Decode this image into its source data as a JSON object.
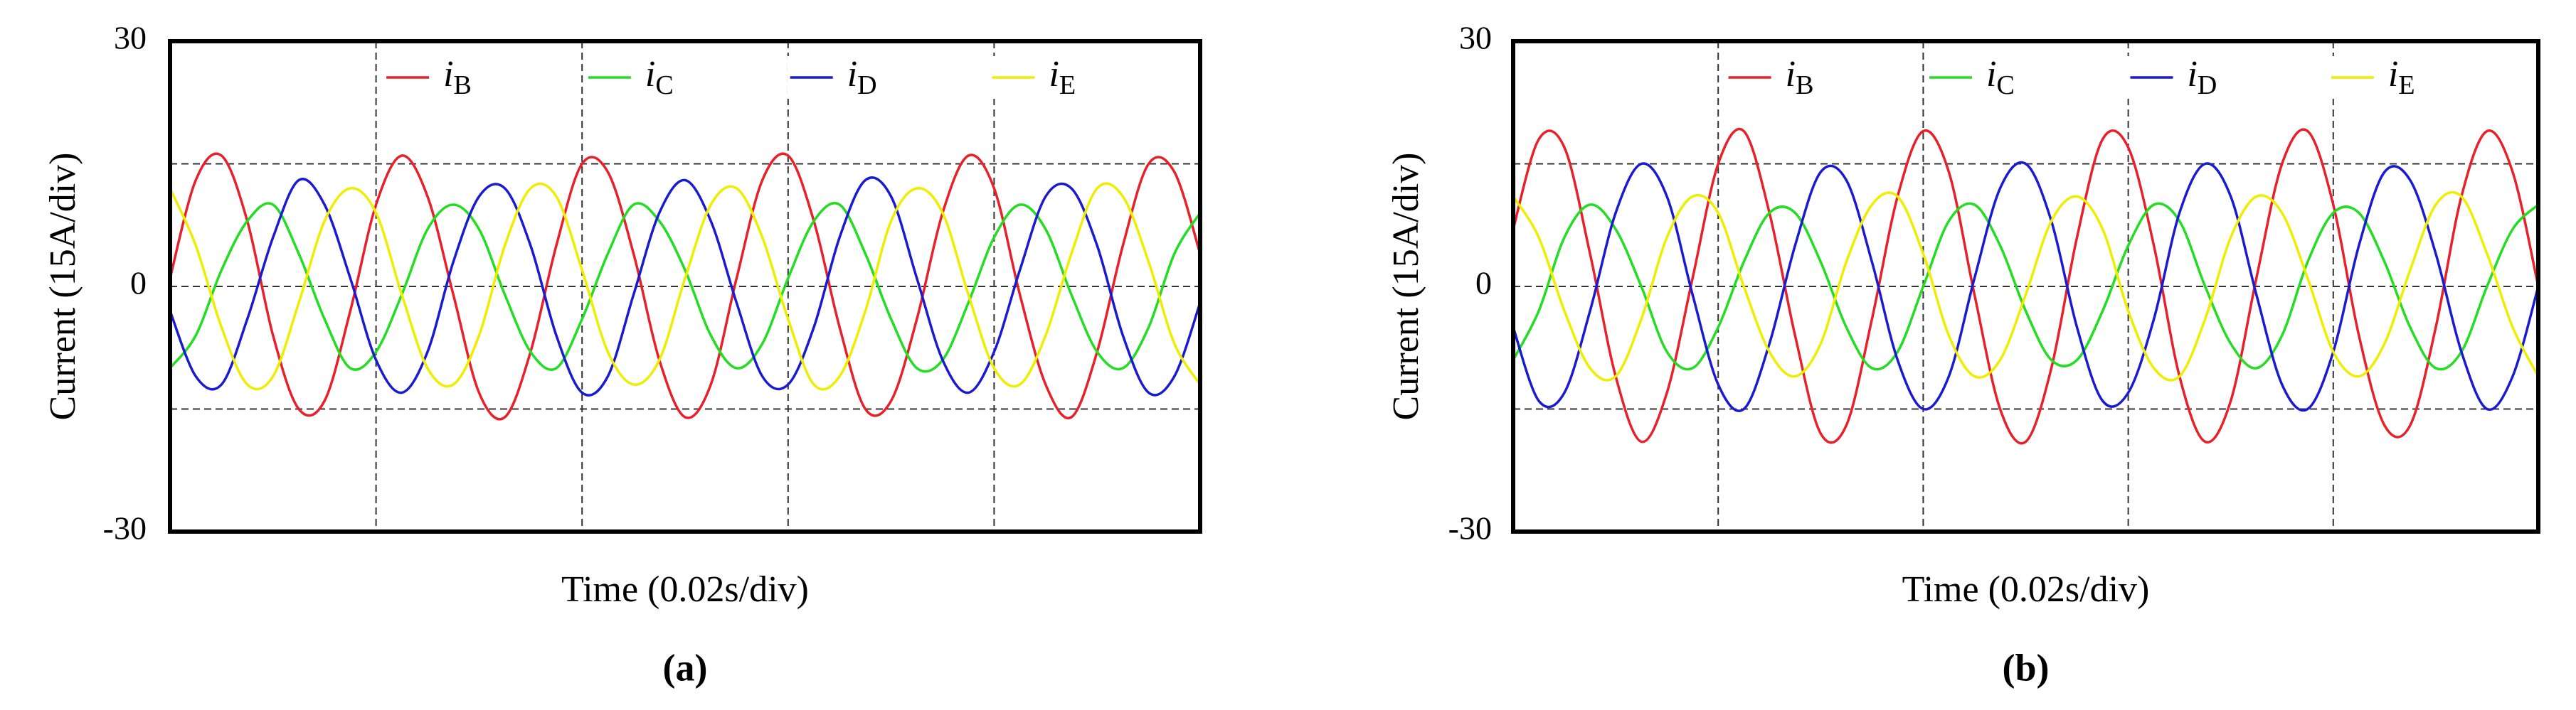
{
  "chart_data": [
    {
      "type": "line",
      "y_label": "Current (15A/div)",
      "x_label": "Time (0.02s/div)",
      "caption": "(a)",
      "xlim": [
        0,
        0.1
      ],
      "ylim": [
        -30,
        30
      ],
      "yticks": [
        -30,
        0,
        30
      ],
      "xgrid": [
        0.02,
        0.04,
        0.06,
        0.08
      ],
      "ygrid": [
        -15,
        0,
        15
      ],
      "legend": "top",
      "x": [
        0,
        0.0025,
        0.005,
        0.0075,
        0.01,
        0.0125,
        0.015,
        0.0175,
        0.02,
        0.0225,
        0.025,
        0.0275,
        0.03,
        0.0325,
        0.035,
        0.0375,
        0.04,
        0.0425,
        0.045,
        0.0475,
        0.05,
        0.0525,
        0.055,
        0.0575,
        0.06,
        0.0625,
        0.065,
        0.0675,
        0.07,
        0.0725,
        0.075,
        0.0775,
        0.08,
        0.0825,
        0.085,
        0.0875,
        0.09,
        0.0925,
        0.095,
        0.0975,
        0.1
      ],
      "series": [
        {
          "name": "iB",
          "color": "#e8202a",
          "values": [
            1,
            13,
            16,
            8,
            -6,
            -15,
            -14,
            -3,
            10,
            16,
            11,
            -1,
            -13,
            -16,
            -8,
            5,
            15,
            14,
            4,
            -9,
            -16,
            -12,
            1,
            13,
            16,
            8,
            -5,
            -15,
            -14,
            -4,
            9,
            16,
            12,
            -1,
            -12,
            -16,
            -8,
            5,
            15,
            14,
            4
          ]
        },
        {
          "name": "iC",
          "color": "#22dd22",
          "values": [
            -10,
            -6,
            2,
            8,
            10,
            4,
            -4,
            -10,
            -8,
            -1,
            7,
            10,
            7,
            -1,
            -8,
            -10,
            -4,
            4,
            10,
            8,
            2,
            -6,
            -10,
            -7,
            1,
            8,
            10,
            4,
            -4,
            -10,
            -9,
            -2,
            6,
            10,
            7,
            -1,
            -8,
            -10,
            -5,
            4,
            9
          ]
        },
        {
          "name": "iD",
          "color": "#1a1ad0",
          "values": [
            -3,
            -11,
            -12,
            -4,
            6,
            13,
            10,
            1,
            -9,
            -13,
            -8,
            3,
            11,
            12,
            5,
            -6,
            -13,
            -11,
            -1,
            9,
            13,
            8,
            -2,
            -11,
            -12,
            -5,
            6,
            13,
            11,
            1,
            -9,
            -13,
            -8,
            2,
            11,
            12,
            5,
            -6,
            -13,
            -11,
            -2
          ]
        },
        {
          "name": "iE",
          "color": "#eeee00",
          "values": [
            12,
            5,
            -5,
            -12,
            -11,
            -2,
            8,
            12,
            9,
            -1,
            -10,
            -12,
            -6,
            5,
            12,
            11,
            2,
            -8,
            -12,
            -9,
            1,
            10,
            12,
            6,
            -4,
            -12,
            -11,
            -3,
            8,
            12,
            9,
            -1,
            -10,
            -12,
            -6,
            4,
            12,
            11,
            3,
            -7,
            -12
          ]
        }
      ]
    },
    {
      "type": "line",
      "y_label": "Current (15A/div)",
      "x_label": "Time (0.02s/div)",
      "caption": "(b)",
      "xlim": [
        0,
        0.1
      ],
      "ylim": [
        -30,
        30
      ],
      "yticks": [
        -30,
        0,
        30
      ],
      "xgrid": [
        0.02,
        0.04,
        0.06,
        0.08
      ],
      "ygrid": [
        -15,
        0,
        15
      ],
      "legend": "top",
      "x": [
        0,
        0.0025,
        0.005,
        0.0075,
        0.01,
        0.0125,
        0.015,
        0.0175,
        0.02,
        0.0225,
        0.025,
        0.0275,
        0.03,
        0.0325,
        0.035,
        0.0375,
        0.04,
        0.0425,
        0.045,
        0.0475,
        0.05,
        0.0525,
        0.055,
        0.0575,
        0.06,
        0.0625,
        0.065,
        0.0675,
        0.07,
        0.0725,
        0.075,
        0.0775,
        0.08,
        0.0825,
        0.085,
        0.0875,
        0.09,
        0.0925,
        0.095,
        0.0975,
        0.1
      ],
      "series": [
        {
          "name": "iB",
          "color": "#e8202a",
          "values": [
            7,
            18,
            17,
            4,
            -11,
            -19,
            -13,
            1,
            15,
            19,
            9,
            -6,
            -18,
            -17,
            -4,
            11,
            19,
            14,
            -1,
            -15,
            -19,
            -10,
            6,
            18,
            17,
            5,
            -11,
            -19,
            -14,
            1,
            15,
            19,
            10,
            -6,
            -17,
            -17,
            -5,
            11,
            19,
            14,
            0
          ]
        },
        {
          "name": "iC",
          "color": "#22dd22",
          "values": [
            -9,
            -3,
            6,
            10,
            7,
            0,
            -8,
            -10,
            -5,
            3,
            9,
            9,
            3,
            -5,
            -10,
            -8,
            0,
            8,
            10,
            5,
            -3,
            -9,
            -9,
            -3,
            5,
            10,
            8,
            0,
            -7,
            -10,
            -6,
            3,
            9,
            9,
            3,
            -5,
            -10,
            -8,
            0,
            7,
            10
          ]
        },
        {
          "name": "iD",
          "color": "#1a1ad0",
          "values": [
            -5,
            -14,
            -13,
            -3,
            9,
            15,
            11,
            -1,
            -12,
            -15,
            -7,
            5,
            14,
            13,
            3,
            -9,
            -15,
            -11,
            1,
            12,
            15,
            8,
            -5,
            -14,
            -13,
            -4,
            9,
            15,
            11,
            -1,
            -12,
            -15,
            -8,
            5,
            14,
            13,
            4,
            -8,
            -15,
            -11,
            0
          ]
        },
        {
          "name": "iE",
          "color": "#eeee00",
          "values": [
            11,
            6,
            -3,
            -10,
            -11,
            -4,
            6,
            11,
            9,
            0,
            -8,
            -11,
            -7,
            3,
            10,
            11,
            4,
            -6,
            -11,
            -9,
            -1,
            8,
            11,
            7,
            -3,
            -10,
            -11,
            -4,
            6,
            11,
            9,
            1,
            -8,
            -11,
            -7,
            2,
            10,
            11,
            4,
            -5,
            -11
          ]
        }
      ]
    }
  ]
}
